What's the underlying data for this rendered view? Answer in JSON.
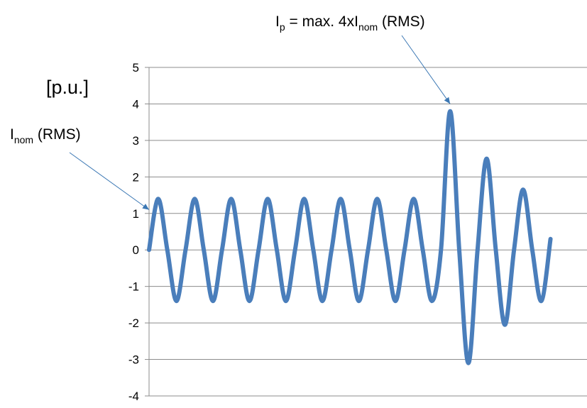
{
  "chart_data": {
    "type": "line",
    "title": "",
    "xlabel": "",
    "ylabel": "[p.u.]",
    "ylim": [
      -4,
      5
    ],
    "yticks": [
      "5",
      "4",
      "3",
      "2",
      "1",
      "0",
      "-1",
      "-2",
      "-3",
      "-4"
    ],
    "xlim": [
      0,
      12
    ],
    "grid": "horizontal",
    "legend": "none",
    "series": [
      {
        "color": "#4a7ebb",
        "x": [
          0,
          0.25,
          0.5,
          0.75,
          1,
          1.25,
          1.5,
          1.75,
          2,
          2.25,
          2.5,
          2.75,
          3,
          3.25,
          3.5,
          3.75,
          4,
          4.25,
          4.5,
          4.75,
          5,
          5.25,
          5.5,
          5.75,
          6,
          6.25,
          6.5,
          6.75,
          7,
          7.25,
          7.5,
          7.75,
          8,
          8.25,
          8.5,
          8.75,
          9,
          9.25,
          9.5,
          9.75,
          10,
          10.25,
          10.5,
          10.75,
          11,
          11.25,
          11.5,
          11.75,
          12
        ],
        "values": [
          0,
          1.4,
          0,
          -1.4,
          0,
          1.4,
          0,
          -1.4,
          0,
          1.4,
          0,
          -1.4,
          0,
          1.4,
          0,
          -1.4,
          0,
          1.4,
          0,
          -1.4,
          0,
          1.4,
          0,
          -1.4,
          0,
          1.4,
          0,
          -1.4,
          0,
          1.4,
          0,
          -1.4,
          0,
          3.8,
          0,
          -3.1,
          0,
          2.5,
          0,
          -2.05,
          0,
          1.65,
          0,
          -1.4,
          0.3,
          null,
          null,
          null,
          null
        ]
      }
    ],
    "annotations": [
      {
        "id": "inom",
        "base": "I",
        "sub": "nom",
        "rest": " (RMS)",
        "target": [
          0,
          1.1
        ]
      },
      {
        "id": "ip",
        "base": "I",
        "sub": "p",
        "mid": " = max. 4xI",
        "sub2": "nom",
        "rest": " (RMS)",
        "target": [
          8.25,
          4.0
        ]
      }
    ]
  }
}
